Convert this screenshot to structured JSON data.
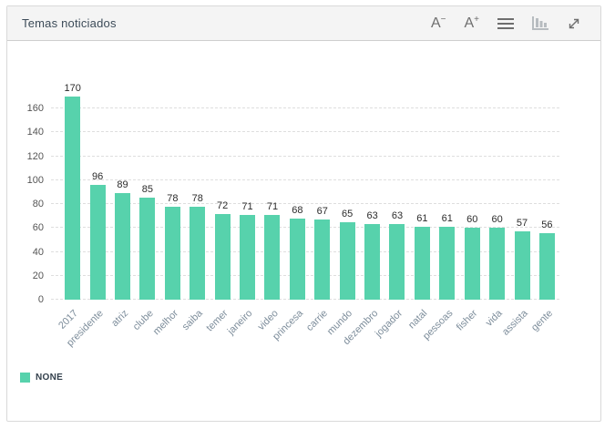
{
  "panel": {
    "title": "Temas noticiados"
  },
  "toolbar": {
    "font_decrease": {
      "letter": "A",
      "sign": "−"
    },
    "font_increase": {
      "letter": "A",
      "sign": "+"
    }
  },
  "chart_data": {
    "type": "bar",
    "title": "Temas noticiados",
    "categories": [
      "2017",
      "presidente",
      "atriz",
      "clube",
      "melhor",
      "saiba",
      "temer",
      "janeiro",
      "video",
      "princesa",
      "carrie",
      "mundo",
      "dezembro",
      "jogador",
      "natal",
      "pessoas",
      "fisher",
      "vida",
      "assista",
      "gente"
    ],
    "values": [
      170,
      96,
      89,
      85,
      78,
      78,
      72,
      71,
      71,
      68,
      67,
      65,
      63,
      63,
      61,
      61,
      60,
      60,
      57,
      56
    ],
    "xlabel": "",
    "ylabel": "",
    "ylim": [
      0,
      160
    ],
    "ytick_step": 20,
    "grid": true,
    "value_labels": true,
    "legend": {
      "position": "bottom-left",
      "label": "NONE"
    },
    "bar_color": "#57d2ac"
  }
}
